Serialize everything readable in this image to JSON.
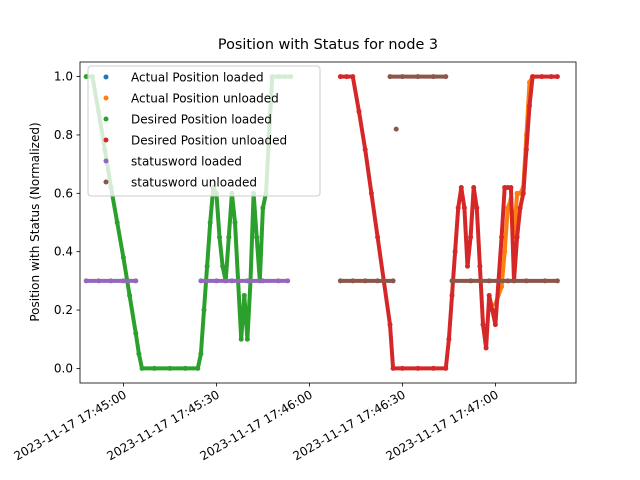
{
  "chart_data": {
    "type": "scatter",
    "title": "Position with Status for node 3",
    "xlabel": "",
    "ylabel": "Position with Status (Normalized)",
    "xlim": [
      "2023-11-17 17:44:46",
      "2023-11-17 17:47:26"
    ],
    "ylim": [
      -0.05,
      1.05
    ],
    "grid": false,
    "legend_position": "upper-left",
    "x_ticks": [
      "2023-11-17 17:45:00",
      "2023-11-17 17:45:30",
      "2023-11-17 17:46:00",
      "2023-11-17 17:46:30",
      "2023-11-17 17:47:00"
    ],
    "y_ticks": [
      "0.0",
      "0.2",
      "0.4",
      "0.6",
      "0.8",
      "1.0"
    ],
    "series": [
      {
        "name": "Actual Position loaded",
        "color": "#1f77b4",
        "points": []
      },
      {
        "name": "Actual Position unloaded",
        "color": "#ff7f0e",
        "points": [
          [
            "2023-11-17 17:47:00",
            0.22
          ],
          [
            "2023-11-17 17:47:02",
            0.28
          ],
          [
            "2023-11-17 17:47:03",
            0.4
          ],
          [
            "2023-11-17 17:47:04",
            0.55
          ],
          [
            "2023-11-17 17:47:05",
            0.58
          ],
          [
            "2023-11-17 17:47:06",
            0.45
          ],
          [
            "2023-11-17 17:47:07",
            0.6
          ],
          [
            "2023-11-17 17:47:08",
            0.6
          ],
          [
            "2023-11-17 17:47:09",
            0.62
          ],
          [
            "2023-11-17 17:47:10",
            0.8
          ],
          [
            "2023-11-17 17:47:11",
            0.98
          ],
          [
            "2023-11-17 17:47:12",
            1.0
          ]
        ]
      },
      {
        "name": "Desired Position loaded",
        "color": "#2ca02c",
        "points": [
          [
            "2023-11-17 17:44:48",
            1.0
          ],
          [
            "2023-11-17 17:44:50",
            1.0
          ],
          [
            "2023-11-17 17:44:52",
            0.88
          ],
          [
            "2023-11-17 17:44:54",
            0.75
          ],
          [
            "2023-11-17 17:44:56",
            0.62
          ],
          [
            "2023-11-17 17:44:58",
            0.5
          ],
          [
            "2023-11-17 17:45:00",
            0.38
          ],
          [
            "2023-11-17 17:45:02",
            0.25
          ],
          [
            "2023-11-17 17:45:04",
            0.12
          ],
          [
            "2023-11-17 17:45:05",
            0.05
          ],
          [
            "2023-11-17 17:45:06",
            0.0
          ],
          [
            "2023-11-17 17:45:10",
            0.0
          ],
          [
            "2023-11-17 17:45:15",
            0.0
          ],
          [
            "2023-11-17 17:45:20",
            0.0
          ],
          [
            "2023-11-17 17:45:24",
            0.0
          ],
          [
            "2023-11-17 17:45:25",
            0.05
          ],
          [
            "2023-11-17 17:45:26",
            0.2
          ],
          [
            "2023-11-17 17:45:27",
            0.35
          ],
          [
            "2023-11-17 17:45:28",
            0.5
          ],
          [
            "2023-11-17 17:45:29",
            0.62
          ],
          [
            "2023-11-17 17:45:30",
            0.6
          ],
          [
            "2023-11-17 17:45:31",
            0.45
          ],
          [
            "2023-11-17 17:45:32",
            0.35
          ],
          [
            "2023-11-17 17:45:33",
            0.3
          ],
          [
            "2023-11-17 17:45:34",
            0.45
          ],
          [
            "2023-11-17 17:45:35",
            0.6
          ],
          [
            "2023-11-17 17:45:36",
            0.5
          ],
          [
            "2023-11-17 17:45:37",
            0.3
          ],
          [
            "2023-11-17 17:45:38",
            0.1
          ],
          [
            "2023-11-17 17:45:39",
            0.25
          ],
          [
            "2023-11-17 17:45:40",
            0.1
          ],
          [
            "2023-11-17 17:45:41",
            0.3
          ],
          [
            "2023-11-17 17:45:42",
            0.6
          ],
          [
            "2023-11-17 17:45:43",
            0.45
          ],
          [
            "2023-11-17 17:45:44",
            0.3
          ],
          [
            "2023-11-17 17:45:45",
            0.55
          ],
          [
            "2023-11-17 17:45:46",
            0.6
          ],
          [
            "2023-11-17 17:45:47",
            0.8
          ],
          [
            "2023-11-17 17:45:48",
            1.0
          ],
          [
            "2023-11-17 17:45:50",
            1.0
          ],
          [
            "2023-11-17 17:45:52",
            1.0
          ],
          [
            "2023-11-17 17:45:54",
            1.0
          ]
        ]
      },
      {
        "name": "Desired Position unloaded",
        "color": "#d62728",
        "points": [
          [
            "2023-11-17 17:46:10",
            1.0
          ],
          [
            "2023-11-17 17:46:12",
            1.0
          ],
          [
            "2023-11-17 17:46:14",
            1.0
          ],
          [
            "2023-11-17 17:46:16",
            0.88
          ],
          [
            "2023-11-17 17:46:18",
            0.75
          ],
          [
            "2023-11-17 17:46:20",
            0.6
          ],
          [
            "2023-11-17 17:46:22",
            0.45
          ],
          [
            "2023-11-17 17:46:24",
            0.3
          ],
          [
            "2023-11-17 17:46:26",
            0.15
          ],
          [
            "2023-11-17 17:46:27",
            0.0
          ],
          [
            "2023-11-17 17:46:30",
            0.0
          ],
          [
            "2023-11-17 17:46:35",
            0.0
          ],
          [
            "2023-11-17 17:46:40",
            0.0
          ],
          [
            "2023-11-17 17:46:44",
            0.0
          ],
          [
            "2023-11-17 17:46:45",
            0.1
          ],
          [
            "2023-11-17 17:46:46",
            0.25
          ],
          [
            "2023-11-17 17:46:47",
            0.4
          ],
          [
            "2023-11-17 17:46:48",
            0.55
          ],
          [
            "2023-11-17 17:46:49",
            0.62
          ],
          [
            "2023-11-17 17:46:50",
            0.55
          ],
          [
            "2023-11-17 17:46:51",
            0.35
          ],
          [
            "2023-11-17 17:46:52",
            0.45
          ],
          [
            "2023-11-17 17:46:53",
            0.62
          ],
          [
            "2023-11-17 17:46:54",
            0.55
          ],
          [
            "2023-11-17 17:46:55",
            0.35
          ],
          [
            "2023-11-17 17:46:56",
            0.15
          ],
          [
            "2023-11-17 17:46:57",
            0.07
          ],
          [
            "2023-11-17 17:46:58",
            0.25
          ],
          [
            "2023-11-17 17:46:59",
            0.2
          ],
          [
            "2023-11-17 17:47:00",
            0.15
          ],
          [
            "2023-11-17 17:47:01",
            0.3
          ],
          [
            "2023-11-17 17:47:02",
            0.45
          ],
          [
            "2023-11-17 17:47:03",
            0.62
          ],
          [
            "2023-11-17 17:47:04",
            0.62
          ],
          [
            "2023-11-17 17:47:05",
            0.62
          ],
          [
            "2023-11-17 17:47:06",
            0.3
          ],
          [
            "2023-11-17 17:47:07",
            0.45
          ],
          [
            "2023-11-17 17:47:08",
            0.55
          ],
          [
            "2023-11-17 17:47:09",
            0.6
          ],
          [
            "2023-11-17 17:47:10",
            0.75
          ],
          [
            "2023-11-17 17:47:11",
            0.9
          ],
          [
            "2023-11-17 17:47:12",
            1.0
          ],
          [
            "2023-11-17 17:47:15",
            1.0
          ],
          [
            "2023-11-17 17:47:18",
            1.0
          ],
          [
            "2023-11-17 17:47:20",
            1.0
          ]
        ]
      },
      {
        "name": "statusword loaded",
        "color": "#9467bd",
        "points": [
          [
            "2023-11-17 17:44:48",
            0.3
          ],
          [
            "2023-11-17 17:44:52",
            0.3
          ],
          [
            "2023-11-17 17:44:56",
            0.3
          ],
          [
            "2023-11-17 17:45:00",
            0.3
          ],
          [
            "2023-11-17 17:45:04",
            0.3
          ],
          [
            "2023-11-17 17:45:25",
            0.3
          ],
          [
            "2023-11-17 17:45:30",
            0.3
          ],
          [
            "2023-11-17 17:45:35",
            0.3
          ],
          [
            "2023-11-17 17:45:40",
            0.3
          ],
          [
            "2023-11-17 17:45:45",
            0.3
          ],
          [
            "2023-11-17 17:45:50",
            0.3
          ],
          [
            "2023-11-17 17:45:53",
            0.3
          ]
        ]
      },
      {
        "name": "statusword unloaded",
        "color": "#8c564b",
        "points": [
          [
            "2023-11-17 17:46:10",
            0.3
          ],
          [
            "2023-11-17 17:46:14",
            0.3
          ],
          [
            "2023-11-17 17:46:18",
            0.3
          ],
          [
            "2023-11-17 17:46:22",
            0.3
          ],
          [
            "2023-11-17 17:46:27",
            0.3
          ],
          [
            "2023-11-17 17:46:28",
            0.82
          ],
          [
            "2023-11-17 17:46:26",
            1.0
          ],
          [
            "2023-11-17 17:46:30",
            1.0
          ],
          [
            "2023-11-17 17:46:35",
            1.0
          ],
          [
            "2023-11-17 17:46:40",
            1.0
          ],
          [
            "2023-11-17 17:46:44",
            1.0
          ],
          [
            "2023-11-17 17:46:46",
            0.3
          ],
          [
            "2023-11-17 17:46:52",
            0.3
          ],
          [
            "2023-11-17 17:46:58",
            0.3
          ],
          [
            "2023-11-17 17:47:04",
            0.3
          ],
          [
            "2023-11-17 17:47:10",
            0.3
          ],
          [
            "2023-11-17 17:47:16",
            0.3
          ],
          [
            "2023-11-17 17:47:20",
            0.3
          ]
        ]
      }
    ]
  }
}
